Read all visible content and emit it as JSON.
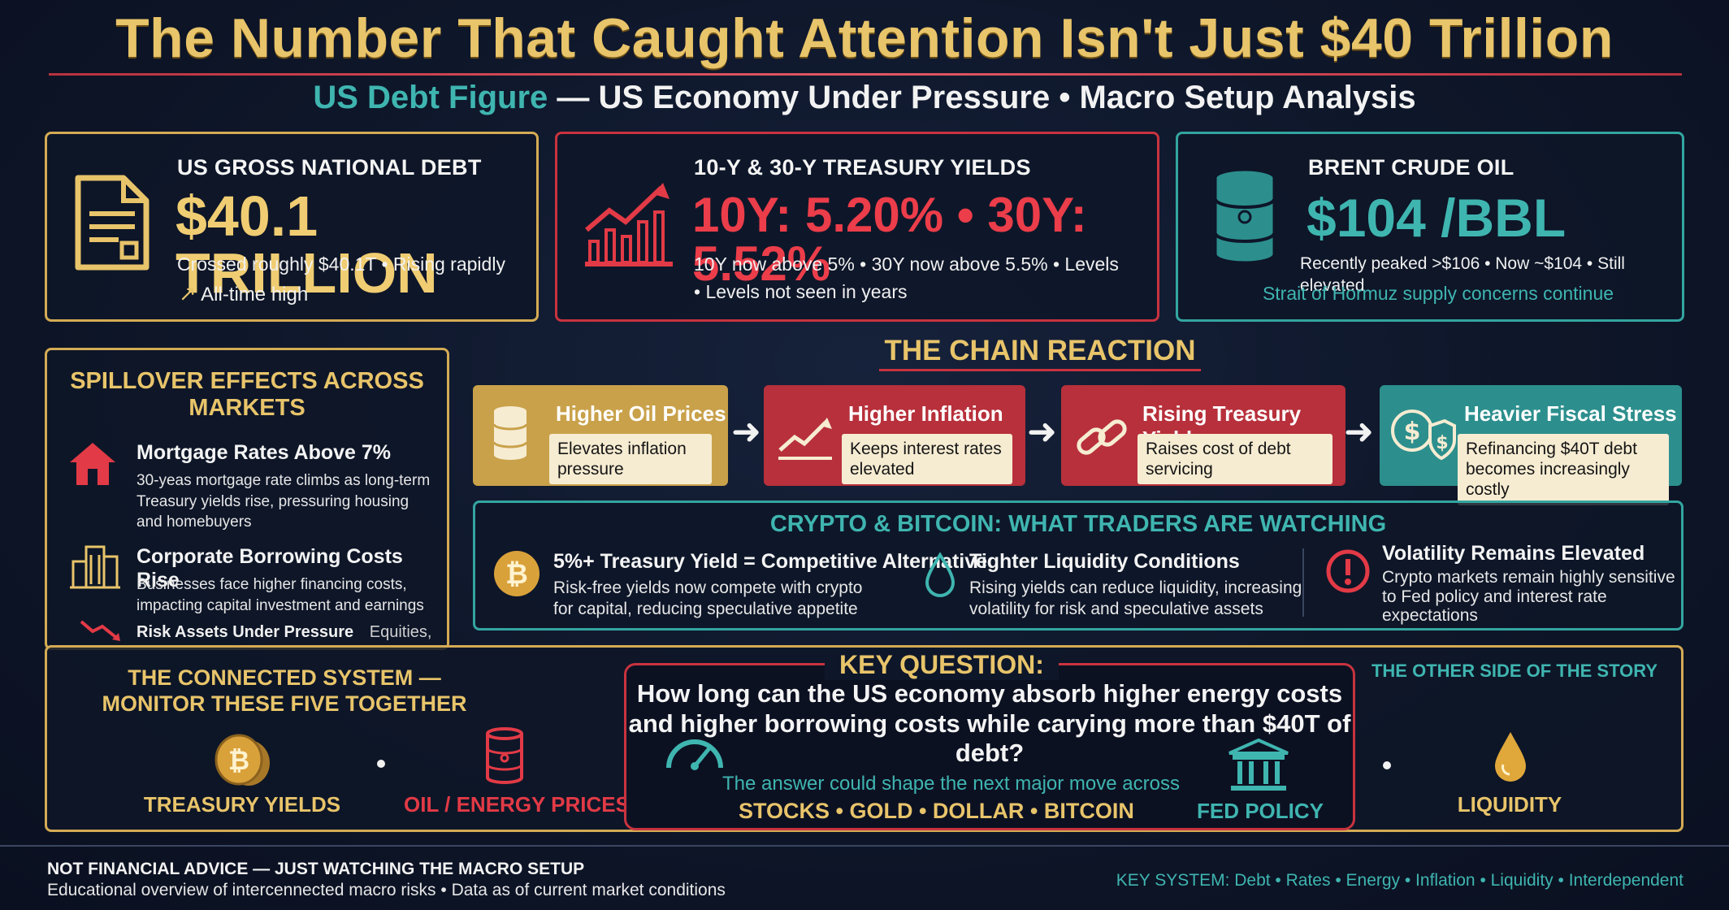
{
  "title": "The Number That Caught Attention Isn't Just $40 Trillion",
  "subtitle": {
    "teal_part": "US Debt Figure",
    "rest": " — US Economy Under Pressure • Macro Setup Analysis"
  },
  "cards": {
    "debt": {
      "heading": "US GROSS NATIONAL DEBT",
      "value": "$40.1 TRILLION",
      "line1": "Crossed roughly $40.1T • Rising rapidly",
      "line2": "All-time high",
      "icon": "document-icon"
    },
    "yields": {
      "heading": "10-Y & 30-Y TREASURY YIELDS",
      "value": "10Y: 5.20% • 30Y: 5.52%",
      "line1": "10Y now above 5% • 30Y now above 5.5% • Levels",
      "line2": "• Levels not seen in years",
      "icon": "rising-chart-icon"
    },
    "oil": {
      "heading": "BRENT CRUDE OIL",
      "value": "$104 /BBL",
      "line1": "Recently peaked >$106 • Now ~$104 • Still elevated",
      "line2": "Strait of Hormuz supply concerns continue",
      "icon": "oil-barrel-icon"
    }
  },
  "spillover": {
    "title_line1": "SPILLOVER EFFECTS ACROSS",
    "title_line2": "MARKETS",
    "items": [
      {
        "heading": "Mortgage Rates Above 7%",
        "text1": "30-yeas mortgage rate climbs as long-term",
        "text2": "Treasury yields rise, pressuring housing",
        "text3": "and homebuyers"
      },
      {
        "heading": "Corporate Borrowing Costs Rise",
        "text1": "Businesses face higher financing costs,",
        "text2": "impacting capital investment and earnings"
      },
      {
        "heading": "Risk Assets Under Pressure",
        "extra": "Equities,"
      }
    ]
  },
  "chain": {
    "title": "THE CHAIN REACTION",
    "steps": [
      {
        "head": "Higher Oil Prices",
        "body1": "Elevates inflation",
        "body2": "pressure",
        "color": "#c9a14a"
      },
      {
        "head": "Higher Inflation",
        "body1": "Keeps interest rates",
        "body2": "elevated",
        "color": "#b7303b"
      },
      {
        "head": "Rising Treasury Yields",
        "body1": "Raises cost of debt",
        "body2": "servicing",
        "color": "#b7303b"
      },
      {
        "head": "Heavier Fiscal Stress",
        "body1": "Refinancing $40T debt",
        "body2": "becomes increasingly costly",
        "color": "#2c8f8d"
      }
    ]
  },
  "crypto": {
    "title": "CRYPTO & BITCOIN: WHAT TRADERS ARE WATCHING",
    "items": [
      {
        "head": "5%+ Treasury Yield = Competitive Alternative",
        "t1": "Risk-free yields now compete with crypto",
        "t2": "for capital, reducing speculative appetite",
        "t3": ""
      },
      {
        "head": "Tighter Liquidity Conditions",
        "t1": "Rising yields can reduce liquidity, increasing",
        "t2": "volatility for risk and speculative assets",
        "t3": ""
      },
      {
        "head": "Volatility Remains Elevated",
        "t1": "Crypto markets remain highly sensitive",
        "t2": "to Fed policy and interest rate",
        "t3": "expectations"
      }
    ]
  },
  "connected": {
    "title_line1": "THE CONNECTED SYSTEM —",
    "title_line2": "MONITOR THESE FIVE TOGETHER",
    "items": {
      "treasury": "TREASURY YIELDS",
      "oil": "OIL / ENERGY PRICES",
      "fed": "FED POLICY",
      "liquidity": "LIQUIDITY"
    },
    "other_side": "THE OTHER SIDE OF THE STORY"
  },
  "key_question": {
    "label": "KEY QUESTION:",
    "q1": "How long can the US economy absorb higher energy costs",
    "q2": "and higher borrowing costs while carying more than $40T of debt?",
    "answer": "The answer could shape the next major move across",
    "assets": "STOCKS • GOLD • DOLLAR • BITCOIN"
  },
  "footer": {
    "line1": "NOT FINANCIAL ADVICE — JUST WATCHING THE MACRO SETUP",
    "line2": "Educational overview of intercennected macro risks • Data as of current market conditions",
    "right": "KEY SYSTEM: Debt • Rates • Energy • Inflation • Liquidity • Interdependent"
  },
  "colors": {
    "gold": "#e8c46a",
    "red": "#e23a46",
    "teal": "#3fb5b0",
    "background": "#0e1629"
  }
}
